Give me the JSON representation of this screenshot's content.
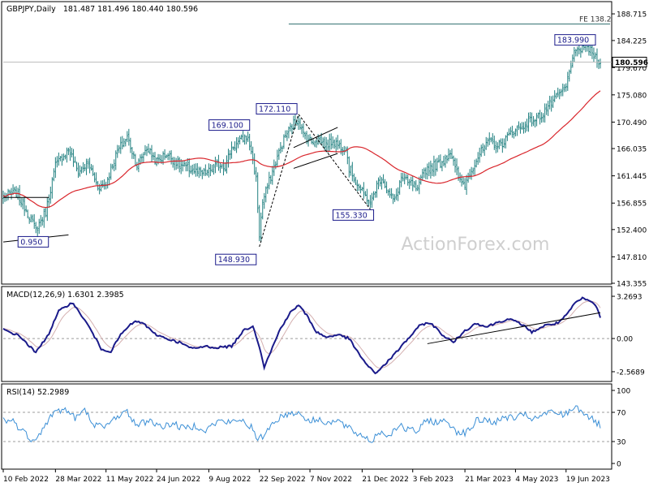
{
  "header": {
    "symbol": "GBPJPY,Daily",
    "ohlc": "181.487 181.496 180.440 180.596"
  },
  "watermark": "ActionForex.com",
  "colors": {
    "candle": "#1f7f7f",
    "ma": "#d9262c",
    "macd": "#1a1a8a",
    "signal": "#d4b0b0",
    "rsi": "#3b8fd6",
    "annotation": "#1a1a8a",
    "grid_dash": "#9c9c9c",
    "panel_border": "#000000"
  },
  "chart_data": [
    {
      "type": "candlestick",
      "title": "GBPJPY,Daily",
      "ylim": [
        143.355,
        190.5
      ],
      "y_ticks": [
        "188.715",
        "184.225",
        "179.670",
        "175.080",
        "170.490",
        "166.035",
        "161.445",
        "156.855",
        "152.400",
        "147.810",
        "143.355"
      ],
      "x_ticks": [
        "10 Feb 2022",
        "28 Mar 2022",
        "11 May 2022",
        "24 Jun 2022",
        "9 Aug 2022",
        "22 Sep 2022",
        "7 Nov 2022",
        "21 Dec 2022",
        "3 Feb 2023",
        "21 Mar 2023",
        "4 May 2023",
        "19 Jun 2023"
      ],
      "x_tick_index": [
        0,
        32,
        63,
        94,
        126,
        157,
        188,
        220,
        251,
        283,
        314,
        345
      ],
      "last_price": "180.596",
      "fe_label": "FE 138.2",
      "fe_level": 187.0,
      "annotations": [
        {
          "label": "183.990",
          "price": 183.99,
          "index": 356
        },
        {
          "label": "172.110",
          "price": 172.11,
          "index": 181
        },
        {
          "label": "169.100",
          "price": 169.1,
          "index": 149
        },
        {
          "label": "155.330",
          "price": 155.33,
          "index": 225
        },
        {
          "label": "148.930",
          "price": 148.93,
          "index": 157
        },
        {
          "label": "0.950",
          "price": 150.95,
          "index": 20
        }
      ],
      "close_anchors": [
        [
          0,
          158.0
        ],
        [
          8,
          158.6
        ],
        [
          14,
          155.8
        ],
        [
          20,
          152.4
        ],
        [
          26,
          155.4
        ],
        [
          32,
          163.2
        ],
        [
          40,
          166.0
        ],
        [
          46,
          162.0
        ],
        [
          52,
          163.6
        ],
        [
          58,
          159.6
        ],
        [
          63,
          160.2
        ],
        [
          70,
          165.6
        ],
        [
          76,
          168.0
        ],
        [
          82,
          163.2
        ],
        [
          88,
          166.2
        ],
        [
          94,
          163.8
        ],
        [
          100,
          165.2
        ],
        [
          108,
          163.3
        ],
        [
          115,
          162.5
        ],
        [
          122,
          161.8
        ],
        [
          126,
          162.2
        ],
        [
          132,
          163.5
        ],
        [
          136,
          163.0
        ],
        [
          140,
          166.2
        ],
        [
          145,
          167.2
        ],
        [
          149,
          168.2
        ],
        [
          152,
          165.8
        ],
        [
          155,
          160.8
        ],
        [
          157,
          151.5
        ],
        [
          159,
          157.0
        ],
        [
          163,
          160.5
        ],
        [
          168,
          164.6
        ],
        [
          173,
          168.2
        ],
        [
          178,
          170.3
        ],
        [
          181,
          171.0
        ],
        [
          184,
          168.4
        ],
        [
          189,
          167.2
        ],
        [
          193,
          167.8
        ],
        [
          198,
          166.5
        ],
        [
          202,
          167.4
        ],
        [
          206,
          166.5
        ],
        [
          210,
          166.2
        ],
        [
          212,
          162.8
        ],
        [
          216,
          160.6
        ],
        [
          220,
          158.6
        ],
        [
          223,
          157.8
        ],
        [
          225,
          156.6
        ],
        [
          228,
          159.2
        ],
        [
          232,
          161.4
        ],
        [
          236,
          158.6
        ],
        [
          240,
          157.2
        ],
        [
          244,
          161.2
        ],
        [
          248,
          160.2
        ],
        [
          251,
          160.1
        ],
        [
          254,
          158.9
        ],
        [
          258,
          162.3
        ],
        [
          262,
          163.0
        ],
        [
          266,
          163.3
        ],
        [
          270,
          164.0
        ],
        [
          274,
          165.6
        ],
        [
          277,
          162.6
        ],
        [
          280,
          160.5
        ],
        [
          283,
          160.0
        ],
        [
          287,
          162.5
        ],
        [
          291,
          164.7
        ],
        [
          295,
          166.2
        ],
        [
          299,
          167.4
        ],
        [
          303,
          166.3
        ],
        [
          307,
          167.3
        ],
        [
          311,
          168.6
        ],
        [
          314,
          169.4
        ],
        [
          318,
          169.5
        ],
        [
          322,
          170.6
        ],
        [
          326,
          171.0
        ],
        [
          330,
          171.7
        ],
        [
          334,
          173.2
        ],
        [
          338,
          174.2
        ],
        [
          341,
          175.2
        ],
        [
          345,
          176.4
        ],
        [
          349,
          181.6
        ],
        [
          352,
          182.2
        ],
        [
          356,
          183.4
        ],
        [
          359,
          182.8
        ],
        [
          362,
          181.8
        ],
        [
          366,
          180.6
        ]
      ],
      "ma_label": "",
      "wedges": [
        {
          "from": [
            178,
            166.2
          ],
          "to": [
            205,
            169.6
          ]
        },
        {
          "from": [
            178,
            162.7
          ],
          "to": [
            205,
            165.2
          ]
        }
      ]
    },
    {
      "type": "line",
      "title": "MACD(12,26,9) 1.6301 2.3985",
      "ylim": [
        -3.2,
        3.9
      ],
      "y_ticks": [
        "3.2693",
        "0.00",
        "-2.5689"
      ],
      "zero_label": "0.00",
      "macd_anchors": [
        [
          0,
          0.7
        ],
        [
          10,
          0.2
        ],
        [
          20,
          -1.1
        ],
        [
          28,
          0.4
        ],
        [
          34,
          2.1
        ],
        [
          42,
          2.8
        ],
        [
          48,
          1.8
        ],
        [
          54,
          0.6
        ],
        [
          60,
          -0.8
        ],
        [
          66,
          -1.0
        ],
        [
          72,
          0.3
        ],
        [
          80,
          1.3
        ],
        [
          86,
          1.2
        ],
        [
          92,
          0.4
        ],
        [
          100,
          0.0
        ],
        [
          108,
          -0.3
        ],
        [
          116,
          -0.8
        ],
        [
          124,
          -0.6
        ],
        [
          130,
          -0.7
        ],
        [
          140,
          -0.6
        ],
        [
          147,
          0.6
        ],
        [
          153,
          1.0
        ],
        [
          157,
          -0.6
        ],
        [
          160,
          -2.2
        ],
        [
          164,
          -1.0
        ],
        [
          170,
          0.8
        ],
        [
          176,
          2.0
        ],
        [
          181,
          2.6
        ],
        [
          186,
          1.8
        ],
        [
          192,
          0.5
        ],
        [
          198,
          0.1
        ],
        [
          205,
          0.3
        ],
        [
          212,
          0.0
        ],
        [
          218,
          -1.2
        ],
        [
          224,
          -2.2
        ],
        [
          228,
          -2.7
        ],
        [
          234,
          -2.0
        ],
        [
          240,
          -1.2
        ],
        [
          246,
          -0.3
        ],
        [
          252,
          0.5
        ],
        [
          256,
          1.1
        ],
        [
          262,
          1.2
        ],
        [
          270,
          0.2
        ],
        [
          276,
          -0.3
        ],
        [
          282,
          0.5
        ],
        [
          290,
          1.2
        ],
        [
          296,
          0.9
        ],
        [
          304,
          1.3
        ],
        [
          310,
          1.5
        ],
        [
          318,
          1.1
        ],
        [
          324,
          0.5
        ],
        [
          332,
          1.0
        ],
        [
          340,
          1.2
        ],
        [
          346,
          1.9
        ],
        [
          350,
          2.7
        ],
        [
          355,
          3.1
        ],
        [
          360,
          2.9
        ],
        [
          364,
          2.4
        ],
        [
          366,
          1.6
        ]
      ],
      "trendline": {
        "from": [
          260,
          -0.4
        ],
        "to": [
          366,
          2.0
        ]
      }
    },
    {
      "type": "line",
      "title": "RSI(14) 52.2989",
      "ylim": [
        0,
        100
      ],
      "y_ticks": [
        "100",
        "70",
        "30",
        "0"
      ],
      "rsi_anchors": [
        [
          0,
          60
        ],
        [
          6,
          58
        ],
        [
          12,
          44
        ],
        [
          18,
          32
        ],
        [
          24,
          46
        ],
        [
          30,
          68
        ],
        [
          38,
          75
        ],
        [
          44,
          62
        ],
        [
          50,
          72
        ],
        [
          56,
          54
        ],
        [
          62,
          48
        ],
        [
          70,
          66
        ],
        [
          76,
          70
        ],
        [
          82,
          52
        ],
        [
          90,
          60
        ],
        [
          96,
          50
        ],
        [
          104,
          55
        ],
        [
          110,
          48
        ],
        [
          118,
          52
        ],
        [
          124,
          46
        ],
        [
          132,
          58
        ],
        [
          140,
          56
        ],
        [
          146,
          60
        ],
        [
          152,
          50
        ],
        [
          156,
          30
        ],
        [
          160,
          40
        ],
        [
          166,
          58
        ],
        [
          172,
          66
        ],
        [
          178,
          70
        ],
        [
          182,
          68
        ],
        [
          188,
          58
        ],
        [
          194,
          60
        ],
        [
          200,
          56
        ],
        [
          206,
          58
        ],
        [
          210,
          50
        ],
        [
          216,
          42
        ],
        [
          222,
          36
        ],
        [
          226,
          30
        ],
        [
          230,
          44
        ],
        [
          236,
          38
        ],
        [
          242,
          52
        ],
        [
          248,
          46
        ],
        [
          254,
          44
        ],
        [
          260,
          60
        ],
        [
          266,
          56
        ],
        [
          272,
          58
        ],
        [
          278,
          44
        ],
        [
          284,
          42
        ],
        [
          290,
          58
        ],
        [
          296,
          60
        ],
        [
          302,
          56
        ],
        [
          308,
          64
        ],
        [
          314,
          62
        ],
        [
          320,
          66
        ],
        [
          326,
          60
        ],
        [
          332,
          68
        ],
        [
          338,
          70
        ],
        [
          344,
          66
        ],
        [
          350,
          78
        ],
        [
          354,
          74
        ],
        [
          358,
          66
        ],
        [
          362,
          58
        ],
        [
          366,
          52
        ]
      ]
    }
  ]
}
